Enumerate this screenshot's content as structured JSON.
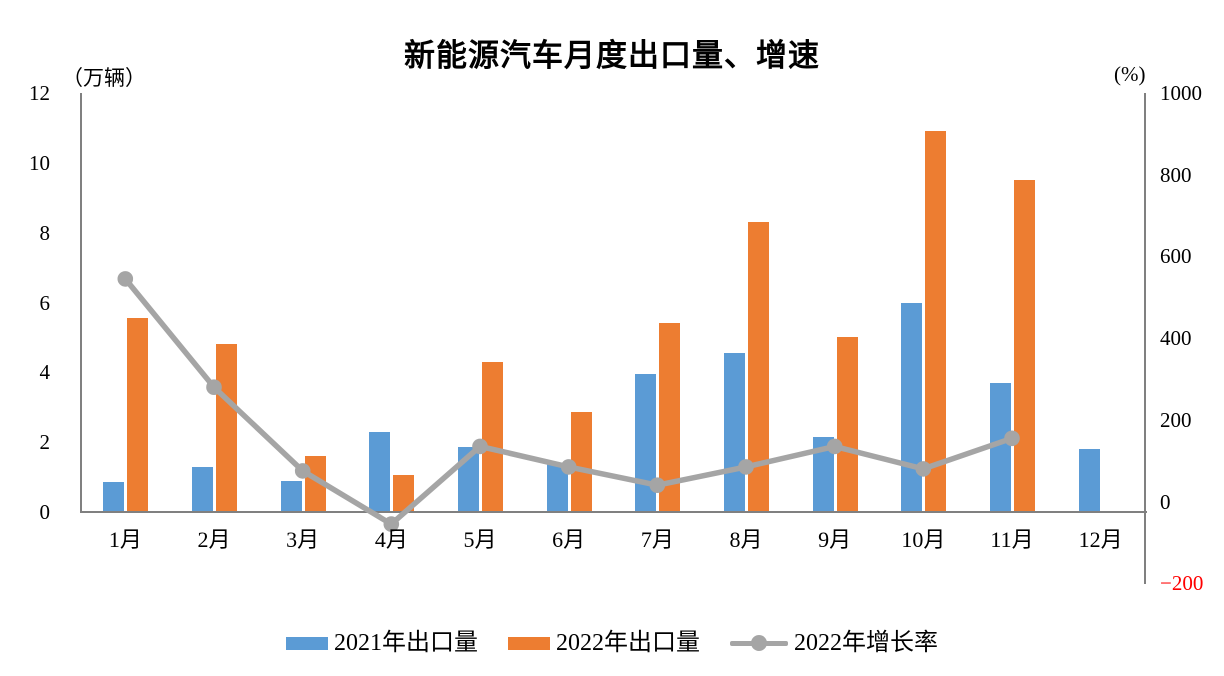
{
  "title": "新能源汽车月度出口量、增速",
  "axis_unit_left": "（万辆）",
  "axis_unit_right": "(%)",
  "colors": {
    "bar_2021": "#5B9BD5",
    "bar_2022": "#ED7D31",
    "growth_line": "#A5A5A5",
    "axis": "#808080",
    "text": "#000000",
    "negative_tick": "#FF0000",
    "background": "#FFFFFF"
  },
  "chart_data": {
    "type": "bar",
    "subtype": "grouped bars with secondary-axis line",
    "title": "新能源汽车月度出口量、增速",
    "categories": [
      "1月",
      "2月",
      "3月",
      "4月",
      "5月",
      "6月",
      "7月",
      "8月",
      "9月",
      "10月",
      "11月",
      "12月"
    ],
    "series": [
      {
        "name": "2021年出口量",
        "type": "bar",
        "axis": "left",
        "color": "#5B9BD5",
        "values": [
          0.85,
          1.3,
          0.9,
          2.3,
          1.85,
          1.4,
          3.95,
          4.55,
          2.15,
          6.0,
          3.7,
          1.8
        ]
      },
      {
        "name": "2022年出口量",
        "type": "bar",
        "axis": "left",
        "color": "#ED7D31",
        "values": [
          5.55,
          4.8,
          1.6,
          1.05,
          4.3,
          2.85,
          5.4,
          8.3,
          5.0,
          10.9,
          9.5,
          null
        ]
      },
      {
        "name": "2022年增长率",
        "type": "line",
        "axis": "right",
        "color": "#A5A5A5",
        "values": [
          545,
          280,
          75,
          -55,
          135,
          85,
          40,
          85,
          135,
          80,
          155,
          null
        ]
      }
    ],
    "left_axis": {
      "unit": "万辆",
      "min": 0,
      "max": 12,
      "ticks": [
        0,
        2,
        4,
        6,
        8,
        10,
        12
      ]
    },
    "right_axis": {
      "unit": "%",
      "min": -200,
      "max": 1000,
      "ticks": [
        1000,
        800,
        600,
        400,
        200,
        0,
        -200
      ],
      "negative_tick_color": "#FF0000"
    },
    "grid": false,
    "legend_position": "bottom"
  }
}
